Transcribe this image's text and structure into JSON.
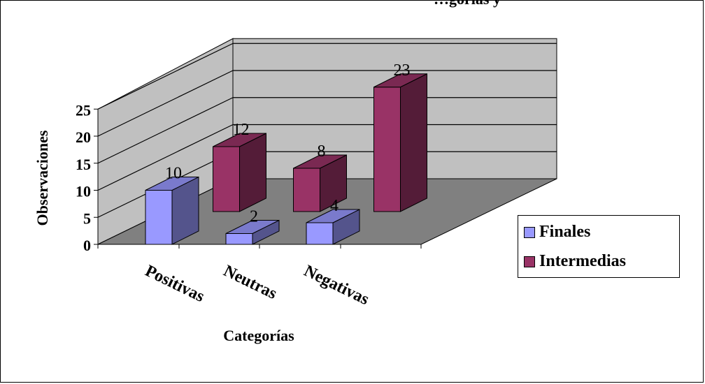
{
  "title": "…gorías y",
  "chart_data": {
    "type": "bar",
    "categories": [
      "Positivas",
      "Neutras",
      "Negativas"
    ],
    "series": [
      {
        "name": "Finales",
        "values": [
          10,
          2,
          4
        ],
        "color": "#9999FF"
      },
      {
        "name": "Intermedias",
        "values": [
          12,
          8,
          23
        ],
        "color": "#993366"
      }
    ],
    "xlabel": "Categorías",
    "ylabel": "Observaciones",
    "ylim": [
      0,
      25
    ],
    "yticks": [
      "0",
      "5",
      "10",
      "15",
      "20",
      "25"
    ],
    "grid": true,
    "legend": "right",
    "projection": "3d"
  }
}
